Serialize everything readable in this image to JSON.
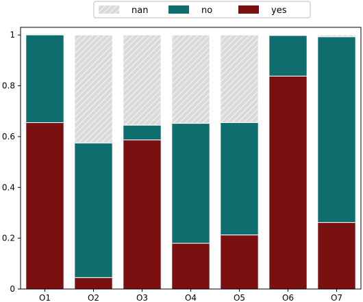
{
  "chart_data": {
    "type": "bar",
    "stacked": true,
    "categories": [
      "O1",
      "O2",
      "O3",
      "O4",
      "O5",
      "O6",
      "O7"
    ],
    "series": [
      {
        "name": "yes",
        "color": "#7a1010",
        "values": [
          0.655,
          0.045,
          0.587,
          0.18,
          0.213,
          0.838,
          0.262
        ]
      },
      {
        "name": "no",
        "color": "#0f6d6d",
        "values": [
          0.345,
          0.53,
          0.058,
          0.472,
          0.442,
          0.16,
          0.731
        ]
      },
      {
        "name": "nan",
        "color": "#d9d9d9",
        "pattern": "hatch",
        "values": [
          0.0,
          0.425,
          0.355,
          0.348,
          0.345,
          0.002,
          0.007
        ]
      }
    ],
    "legend_order": [
      "nan",
      "no",
      "yes"
    ],
    "legend_placement": "top-center",
    "ylim": [
      0,
      1.03
    ],
    "yticks": [
      0,
      0.2,
      0.4,
      0.6,
      0.8,
      1
    ],
    "ytick_labels": [
      "0",
      "0.2",
      "0.4",
      "0.6",
      "0.8",
      "1"
    ],
    "grid": false,
    "title": "",
    "xlabel": "",
    "ylabel": ""
  }
}
